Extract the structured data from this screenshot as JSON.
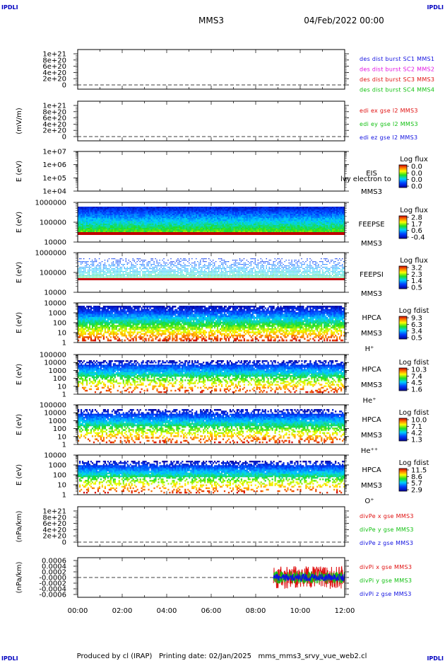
{
  "header": {
    "logo_left": "IPDLI",
    "logo_right": "IPDLI",
    "spacecraft": "MMS3",
    "date": "04/Feb/2022 00:00"
  },
  "footer": {
    "logo_left": "IPDLI",
    "logo_right": "IPDLI",
    "text": "Produced by cl (IRAP)   Printing date: 02/Jan/2025   mms_mms3_srvy_vue_web2.cl"
  },
  "colors": {
    "blue": "#1010e0",
    "magenta": "#e010e0",
    "red": "#e01010",
    "green": "#10c010"
  },
  "time_axis": {
    "ticks": [
      "00:00",
      "02:00",
      "04:00",
      "06:00",
      "08:00",
      "10:00",
      "12:00"
    ],
    "range_hours": [
      0,
      12
    ]
  },
  "chart_data": [
    {
      "id": "p1",
      "type": "line",
      "ylabel": "",
      "yticks": [
        "1e+21",
        "8e+20",
        "6e+20",
        "4e+20",
        "2e+20",
        "0"
      ],
      "legend": [
        {
          "text": "des dist burst SC1 MMS1",
          "color": "#1010e0"
        },
        {
          "text": "des dist burst SC2 MMS2",
          "color": "#e010e0"
        },
        {
          "text": "des dist burst SC3 MMS3",
          "color": "#e01010"
        },
        {
          "text": "des dist burst SC4 MMS4",
          "color": "#10c010"
        }
      ],
      "zero_line": true,
      "series": []
    },
    {
      "id": "p2",
      "type": "line",
      "ylabel": "(mV/m)",
      "yticks": [
        "1e+21",
        "8e+20",
        "6e+20",
        "4e+20",
        "2e+20",
        "0"
      ],
      "legend": [
        {
          "text": "edi ex gse l2 MMS3",
          "color": "#e01010"
        },
        {
          "text": "edi ey gse l2 MMS3",
          "color": "#10c010"
        },
        {
          "text": "edi ez gse l2 MMS3",
          "color": "#1010e0"
        }
      ],
      "zero_line": true,
      "series": []
    },
    {
      "id": "p3",
      "type": "heatmap",
      "ylabel": "E (eV)",
      "yticks": [
        "1e+07",
        "1e+06",
        "1e+05",
        "1e+04"
      ],
      "instrument": [
        "EIS",
        "MMS3"
      ],
      "overlay_text": "lvy electron to",
      "colorbar": {
        "title": "Log flux",
        "labels": [
          "0.0",
          "0.0",
          "0.0",
          "0.0"
        ]
      },
      "band": null
    },
    {
      "id": "p4",
      "type": "heatmap",
      "ylabel": "E (eV)",
      "yticks": [
        "1000000",
        "100000",
        "10000"
      ],
      "instrument": [
        "FEEPSE",
        "MMS3"
      ],
      "colorbar": {
        "title": "Log flux",
        "labels": [
          "2.8",
          "1.7",
          "0.6",
          "-0.4"
        ]
      },
      "band": {
        "kind": "feepse",
        "t0": 0,
        "t1": 12
      }
    },
    {
      "id": "p5",
      "type": "heatmap",
      "ylabel": "E (eV)",
      "yticks": [
        "1000000",
        "100000",
        "10000"
      ],
      "instrument": [
        "FEEPSI",
        "MMS3"
      ],
      "colorbar": {
        "title": "Log flux",
        "labels": [
          "3.2",
          "2.3",
          "1.4",
          "0.5"
        ]
      },
      "band": {
        "kind": "feepsi",
        "t0": 0,
        "t1": 12
      }
    },
    {
      "id": "p6",
      "type": "heatmap",
      "ylabel": "E (eV)",
      "yticks": [
        "10000",
        "1000",
        "100",
        "10",
        "1"
      ],
      "instrument": [
        "HPCA",
        "MMS3",
        "H⁺"
      ],
      "colorbar": {
        "title": "Log fdist",
        "labels": [
          "9.3",
          "6.3",
          "3.4",
          "0.5"
        ]
      },
      "band": {
        "kind": "hplus",
        "t0": 0,
        "t1": 12
      }
    },
    {
      "id": "p7",
      "type": "heatmap",
      "ylabel": "E (eV)",
      "yticks": [
        "100000",
        "10000",
        "1000",
        "100",
        "10",
        "1"
      ],
      "instrument": [
        "HPCA",
        "MMS3",
        "He⁺"
      ],
      "colorbar": {
        "title": "Log fdist",
        "labels": [
          "10.3",
          "7.4",
          "4.5",
          "1.6"
        ]
      },
      "band": {
        "kind": "heplus",
        "t0": 0,
        "t1": 12
      }
    },
    {
      "id": "p8",
      "type": "heatmap",
      "ylabel": "E (eV)",
      "yticks": [
        "100000",
        "10000",
        "1000",
        "100",
        "10",
        "1"
      ],
      "instrument": [
        "HPCA",
        "MMS3",
        "He⁺⁺"
      ],
      "colorbar": {
        "title": "Log fdist",
        "labels": [
          "10.0",
          "7.1",
          "4.2",
          "1.3"
        ]
      },
      "band": {
        "kind": "heplusplus",
        "t0": 0,
        "t1": 12
      }
    },
    {
      "id": "p9",
      "type": "heatmap",
      "ylabel": "E (eV)",
      "yticks": [
        "10000",
        "1000",
        "100",
        "10",
        "1"
      ],
      "instrument": [
        "HPCA",
        "MMS3",
        "O⁺"
      ],
      "colorbar": {
        "title": "Log fdist",
        "labels": [
          "11.5",
          "8.6",
          "5.7",
          "2.9"
        ]
      },
      "band": {
        "kind": "oplus",
        "t0": 0,
        "t1": 12
      }
    },
    {
      "id": "p10",
      "type": "line",
      "ylabel": "(nPa/km)",
      "yticks": [
        "1e+21",
        "8e+20",
        "6e+20",
        "4e+20",
        "2e+20",
        "0"
      ],
      "legend": [
        {
          "text": "divPe x gse MMS3",
          "color": "#e01010"
        },
        {
          "text": "divPe y gse MMS3",
          "color": "#10c010"
        },
        {
          "text": "divPe z gse MMS3",
          "color": "#1010e0"
        }
      ],
      "zero_line": true,
      "series": []
    },
    {
      "id": "p11",
      "type": "line",
      "ylabel": "(nPa/km)",
      "yticks": [
        "0.0006",
        "0.0004",
        "0.0002",
        "-0.0000",
        "-0.0002",
        "-0.0004",
        "-0.0006"
      ],
      "ylim": [
        -0.0006,
        0.0006
      ],
      "legend": [
        {
          "text": "divPi x gse MMS3",
          "color": "#e01010"
        },
        {
          "text": "divPi y gse MMS3",
          "color": "#10c010"
        },
        {
          "text": "divPi z gse MMS3",
          "color": "#1010e0"
        }
      ],
      "zero_line": true,
      "series": [
        {
          "color": "#e01010",
          "t_start": 8.8,
          "t_end": 12.0,
          "amplitude": 0.0004
        },
        {
          "color": "#10c010",
          "t_start": 8.8,
          "t_end": 12.0,
          "amplitude": 0.00022
        },
        {
          "color": "#1010e0",
          "t_start": 8.8,
          "t_end": 12.0,
          "amplitude": 0.00013
        }
      ]
    }
  ]
}
